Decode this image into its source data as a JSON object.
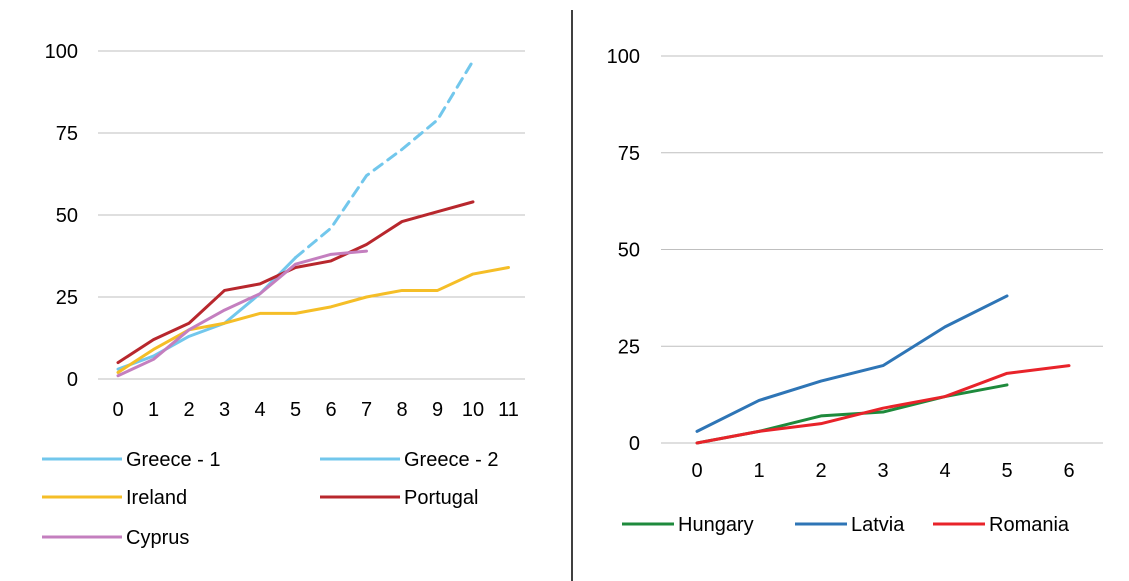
{
  "chart_data": [
    {
      "type": "line",
      "title": "",
      "xlabel": "",
      "ylabel": "",
      "x": [
        0,
        1,
        2,
        3,
        4,
        5,
        6,
        7,
        8,
        9,
        10,
        11
      ],
      "x_ticks": [
        "0",
        "1",
        "2",
        "3",
        "4",
        "5",
        "6",
        "7",
        "8",
        "9",
        "10",
        "11"
      ],
      "ylim": [
        0,
        100
      ],
      "y_ticks": [
        "0",
        "25",
        "50",
        "75",
        "100"
      ],
      "grid": true,
      "legend_position": "bottom",
      "series": [
        {
          "name": "Greece - 1",
          "color": "#72C7EC",
          "dash": "solid",
          "x": [
            0,
            1,
            2,
            3,
            4,
            5
          ],
          "values": [
            3,
            7,
            13,
            17,
            26,
            37
          ]
        },
        {
          "name": "Greece - 2",
          "color": "#72C7EC",
          "dash": "dashed",
          "x": [
            5,
            6,
            7,
            8,
            9,
            10
          ],
          "values": [
            37,
            46,
            62,
            70,
            79,
            97
          ]
        },
        {
          "name": "Ireland",
          "color": "#F5BE27",
          "dash": "solid",
          "x": [
            0,
            1,
            2,
            3,
            4,
            5,
            6,
            7,
            8,
            9,
            10,
            11
          ],
          "values": [
            2,
            9,
            15,
            17,
            20,
            20,
            22,
            25,
            27,
            27,
            32,
            34
          ]
        },
        {
          "name": "Portugal",
          "color": "#B8272D",
          "dash": "solid",
          "x": [
            0,
            1,
            2,
            3,
            4,
            5,
            6,
            7,
            8,
            9,
            10
          ],
          "values": [
            5,
            12,
            17,
            27,
            29,
            34,
            36,
            41,
            48,
            51,
            54
          ]
        },
        {
          "name": "Cyprus",
          "color": "#C47FBF",
          "dash": "solid",
          "x": [
            0,
            1,
            2,
            3,
            4,
            5,
            6,
            7
          ],
          "values": [
            1,
            6,
            15,
            21,
            26,
            35,
            38,
            39
          ]
        }
      ]
    },
    {
      "type": "line",
      "title": "",
      "xlabel": "",
      "ylabel": "",
      "x": [
        0,
        1,
        2,
        3,
        4,
        5,
        6
      ],
      "x_ticks": [
        "0",
        "1",
        "2",
        "3",
        "4",
        "5",
        "6"
      ],
      "ylim": [
        0,
        100
      ],
      "y_ticks": [
        "0",
        "25",
        "50",
        "75",
        "100"
      ],
      "grid": true,
      "legend_position": "bottom",
      "series": [
        {
          "name": "Hungary",
          "color": "#1E8A3C",
          "dash": "solid",
          "x": [
            0,
            1,
            2,
            3,
            4,
            5
          ],
          "values": [
            0,
            3,
            7,
            8,
            12,
            15
          ]
        },
        {
          "name": "Latvia",
          "color": "#2E75B6",
          "dash": "solid",
          "x": [
            0,
            1,
            2,
            3,
            4,
            5
          ],
          "values": [
            3,
            11,
            16,
            20,
            30,
            38
          ]
        },
        {
          "name": "Romania",
          "color": "#E8232A",
          "dash": "solid",
          "x": [
            0,
            1,
            2,
            3,
            4,
            5,
            6
          ],
          "values": [
            0,
            3,
            5,
            9,
            12,
            18,
            20
          ]
        }
      ]
    }
  ]
}
